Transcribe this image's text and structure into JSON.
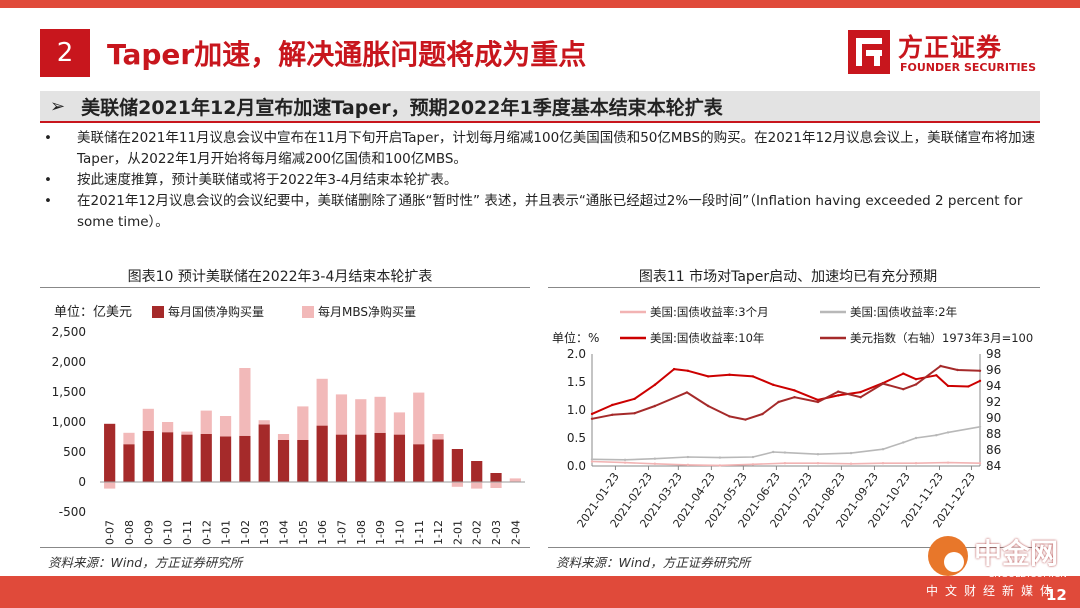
{
  "header": {
    "section_number": "2",
    "title": "Taper加速，解决通胀问题将成为重点",
    "logo_cn": "方正证券",
    "logo_en": "FOUNDER SECURITIES"
  },
  "subtitle": {
    "arrow": "➢",
    "text": "美联储2021年12月宣布加速Taper，预期2022年1季度基本结束本轮扩表"
  },
  "bullets": [
    {
      "dot": "•",
      "text": "美联储在2021年11月议息会议中宣布在11月下旬开启Taper，计划每月缩减100亿美国国债和50亿MBS的购买。在2021年12月议息会议上，美联储宣布将加速Taper，从2022年1月开始将每月缩减200亿国债和100亿MBS。"
    },
    {
      "dot": "•",
      "text": "按此速度推算，预计美联储或将于2022年3-4月结束本轮扩表。"
    },
    {
      "dot": "•",
      "text": "在2021年12月议息会议的会议纪要中，美联储删除了通胀“暂时性” 表述，并且表示“通胀已经超过2%一段时间”（Inflation having exceeded 2 percent for some time）。"
    }
  ],
  "chart_data": [
    {
      "type": "bar",
      "title": "图表10 预计美联储在2022年3-4月结束本轮扩表",
      "unit_label": "单位：亿美元",
      "stacked": true,
      "categories": [
        "2020-07",
        "2020-08",
        "2020-09",
        "2020-10",
        "2020-11",
        "2020-12",
        "2021-01",
        "2021-02",
        "2021-03",
        "2021-04",
        "2021-05",
        "2021-06",
        "2021-07",
        "2021-08",
        "2021-09",
        "2021-10",
        "2021-11",
        "2021-12",
        "2022-01",
        "2022-02",
        "2022-03",
        "2022-04"
      ],
      "series": [
        {
          "name": "每月国债净购买量",
          "color": "#a52a2a",
          "values": [
            970,
            630,
            850,
            830,
            790,
            800,
            760,
            770,
            960,
            700,
            700,
            940,
            790,
            790,
            820,
            790,
            630,
            710,
            550,
            350,
            150,
            0
          ]
        },
        {
          "name": "每月MBS净购买量",
          "color": "#f2b9b9",
          "values": [
            -110,
            190,
            370,
            170,
            50,
            390,
            340,
            1130,
            70,
            100,
            560,
            780,
            670,
            590,
            600,
            370,
            860,
            90,
            -80,
            -110,
            -100,
            60
          ]
        }
      ],
      "yticks": [
        "2,500",
        "2,000",
        "1,500",
        "1,000",
        "500",
        "0",
        "-500"
      ],
      "ylim": [
        -500,
        2500
      ],
      "legend_position": "top-left",
      "source": "资料来源：Wind，方正证券研究所"
    },
    {
      "type": "line",
      "title": "图表11 市场对Taper启动、加速均已有充分预期",
      "unit_label": "单位：%",
      "xticks": [
        "2021-01-23",
        "2021-02-23",
        "2021-03-23",
        "2021-04-23",
        "2021-05-23",
        "2021-06-23",
        "2021-07-23",
        "2021-08-23",
        "2021-09-23",
        "2021-10-23",
        "2021-11-23",
        "2021-12-23"
      ],
      "yticks_left": [
        "2.0",
        "1.5",
        "1.0",
        "0.5",
        "0.0"
      ],
      "yticks_right": [
        "98",
        "96",
        "94",
        "92",
        "90",
        "88",
        "86",
        "84"
      ],
      "ylim_left": [
        0,
        2.0
      ],
      "ylim_right": [
        84,
        98
      ],
      "x_range": [
        "2021-01-01",
        "2021-12-31"
      ],
      "legend_position": "top",
      "series": [
        {
          "name": "美国:国债收益率:3个月",
          "axis": "left",
          "color": "#f2b3b3",
          "x": [
            "2021-01-01",
            "2021-02-01",
            "2021-03-01",
            "2021-04-01",
            "2021-05-01",
            "2021-06-01",
            "2021-07-01",
            "2021-08-01",
            "2021-09-01",
            "2021-10-01",
            "2021-11-01",
            "2021-12-01",
            "2021-12-31"
          ],
          "values": [
            0.08,
            0.06,
            0.04,
            0.02,
            0.01,
            0.03,
            0.05,
            0.05,
            0.04,
            0.05,
            0.05,
            0.06,
            0.05
          ]
        },
        {
          "name": "美国:国债收益率:2年",
          "axis": "left",
          "color": "#b8b8b8",
          "x": [
            "2021-01-01",
            "2021-02-01",
            "2021-03-01",
            "2021-04-01",
            "2021-05-01",
            "2021-06-01",
            "2021-06-20",
            "2021-07-01",
            "2021-08-01",
            "2021-09-01",
            "2021-10-01",
            "2021-10-20",
            "2021-11-01",
            "2021-11-20",
            "2021-12-01",
            "2021-12-31"
          ],
          "values": [
            0.12,
            0.11,
            0.13,
            0.16,
            0.15,
            0.16,
            0.25,
            0.24,
            0.21,
            0.23,
            0.3,
            0.42,
            0.5,
            0.55,
            0.6,
            0.7
          ]
        },
        {
          "name": "美国:国债收益率:10年",
          "axis": "left",
          "color": "#cc0000",
          "x": [
            "2021-01-01",
            "2021-01-20",
            "2021-02-10",
            "2021-03-01",
            "2021-03-19",
            "2021-04-01",
            "2021-04-20",
            "2021-05-10",
            "2021-06-01",
            "2021-06-20",
            "2021-07-10",
            "2021-08-01",
            "2021-08-20",
            "2021-09-10",
            "2021-10-01",
            "2021-10-20",
            "2021-11-01",
            "2021-11-20",
            "2021-12-01",
            "2021-12-20",
            "2021-12-31"
          ],
          "values": [
            0.93,
            1.09,
            1.2,
            1.45,
            1.73,
            1.7,
            1.6,
            1.63,
            1.6,
            1.45,
            1.35,
            1.18,
            1.26,
            1.32,
            1.48,
            1.65,
            1.55,
            1.62,
            1.43,
            1.42,
            1.52
          ]
        },
        {
          "name": "美元指数（右轴）1973年3月=100",
          "axis": "right",
          "color": "#a52a2a",
          "x": [
            "2021-01-01",
            "2021-01-20",
            "2021-02-10",
            "2021-03-01",
            "2021-03-31",
            "2021-04-20",
            "2021-05-10",
            "2021-05-25",
            "2021-06-10",
            "2021-06-25",
            "2021-07-10",
            "2021-08-01",
            "2021-08-20",
            "2021-09-10",
            "2021-10-01",
            "2021-10-20",
            "2021-11-01",
            "2021-11-24",
            "2021-12-10",
            "2021-12-31"
          ],
          "values": [
            89.9,
            90.4,
            90.6,
            91.5,
            93.2,
            91.5,
            90.2,
            89.8,
            90.5,
            92.0,
            92.6,
            92.0,
            93.3,
            92.6,
            94.3,
            93.6,
            94.2,
            96.5,
            96.0,
            95.9
          ]
        }
      ],
      "source": "资料来源：Wind，方正证券研究所"
    }
  ],
  "watermark": {
    "cn": "中金网",
    "url": "CNGOLD.COM.CN",
    "sub": "中文财经新媒体"
  },
  "page_number": "12",
  "colors": {
    "brand_red": "#c8161d",
    "bar_dark": "#a52a2a",
    "bar_light": "#f2b9b9",
    "bottom_bar": "#e04a3a"
  }
}
